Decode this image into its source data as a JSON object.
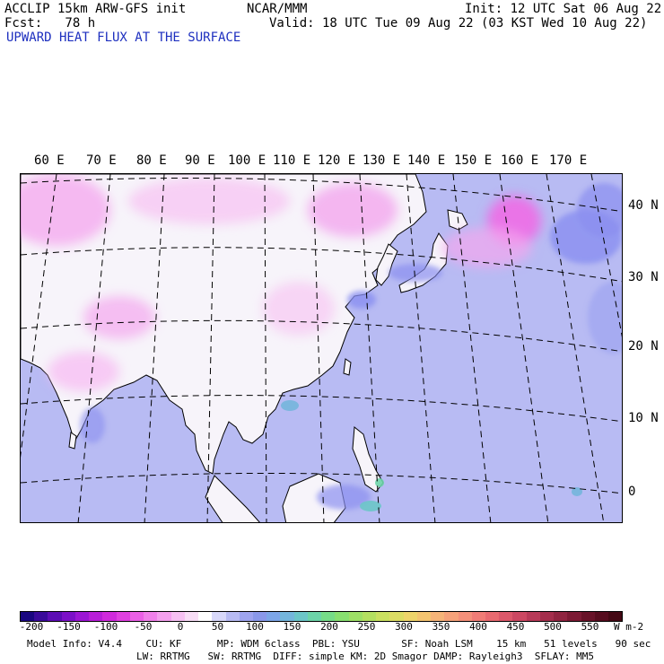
{
  "header": {
    "line1_left": "ACCLIP 15km ARW-GFS init",
    "line1_center": "NCAR/MMM",
    "line1_right": "Init: 12 UTC Sat 06 Aug 22",
    "line2_left": "Fcst:   78 h",
    "line2_right": "Valid: 18 UTC Tue 09 Aug 22 (03 KST Wed 10 Aug 22)",
    "field_title": "UPWARD HEAT FLUX AT THE SURFACE"
  },
  "map": {
    "lon_labels": [
      "60 E",
      "70 E",
      "80 E",
      "90 E",
      "100 E",
      "110 E",
      "120 E",
      "130 E",
      "140 E",
      "150 E",
      "160 E",
      "170 E"
    ],
    "lat_labels": [
      "40 N",
      "30 N",
      "20 N",
      "10 N",
      "0"
    ],
    "colors": {
      "ocean": "#b8bbf3",
      "land": "#f7f4fa",
      "strong_neg": "#8a8ff0",
      "pos": "#f2a6ee",
      "coast": "#000000"
    }
  },
  "colorbar": {
    "tick_labels": [
      "-200",
      "-150",
      "-100",
      "-50",
      "0",
      "50",
      "100",
      "150",
      "200",
      "250",
      "300",
      "350",
      "400",
      "450",
      "500",
      "550"
    ],
    "units": "W m-2",
    "colors": [
      "#1a0780",
      "#3a0a9a",
      "#5c0db4",
      "#7c10c8",
      "#9c16d4",
      "#b81ed8",
      "#d02adc",
      "#e040e0",
      "#ea60e6",
      "#f080ea",
      "#f4a0ee",
      "#f6c0f2",
      "#f8ddf6",
      "#ffffff",
      "#d8d8fa",
      "#b8bbf3",
      "#9ea4ef",
      "#8a98ea",
      "#7da6e8",
      "#74b6dc",
      "#6cc6c8",
      "#6cd4a8",
      "#76dc88",
      "#88e070",
      "#9ee066",
      "#b4e060",
      "#cae060",
      "#dcdc64",
      "#eed46a",
      "#f4c470",
      "#f6b478",
      "#f6a27a",
      "#f4907a",
      "#f07c76",
      "#e86a70",
      "#dc586a",
      "#cc4862",
      "#b83a58",
      "#a42e4c",
      "#902440",
      "#7c1a34",
      "#681228",
      "#560c1e",
      "#440814"
    ]
  },
  "model_info": {
    "line1": "Model Info: V4.4    CU: KF      MP: WDM 6class  PBL: YSU       SF: Noah LSM    15 km   51 levels   90 sec",
    "line2": "LW: RRTMG   SW: RRTMG  DIFF: simple KM: 2D Smagor DAMP: Rayleigh3  SFLAY: MM5"
  }
}
